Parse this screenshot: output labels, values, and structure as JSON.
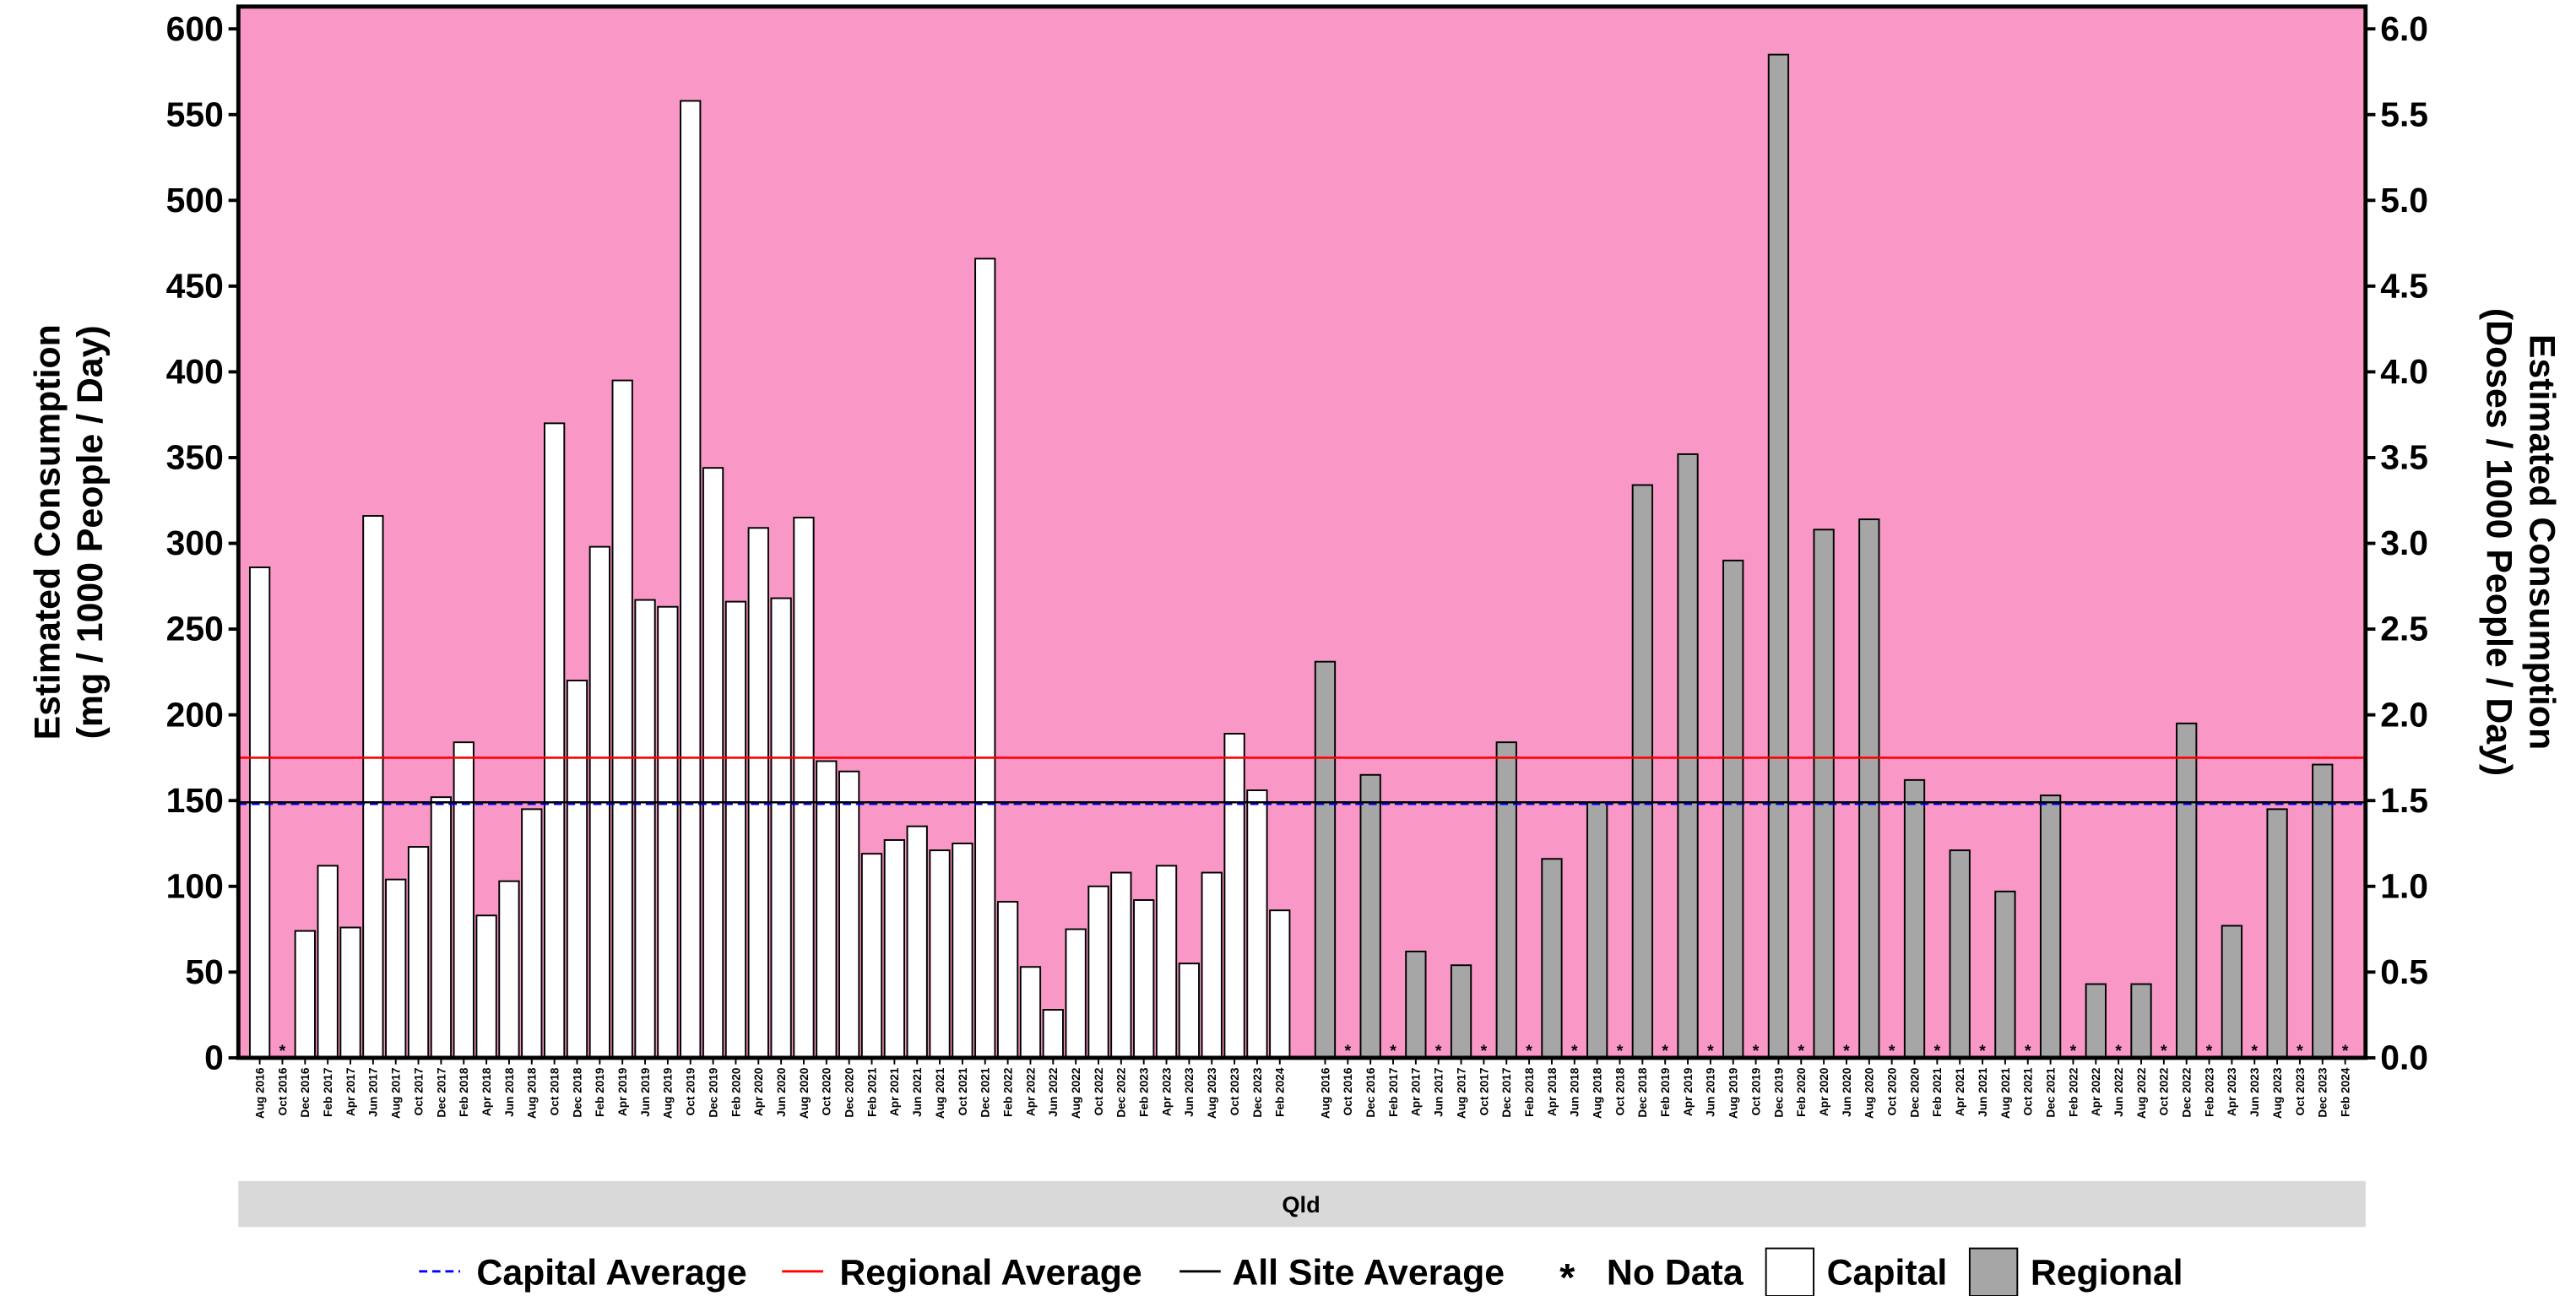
{
  "chart_data": {
    "type": "bar",
    "y_label": [
      "Estimated Consumption",
      "(mg / 1000 People / Day)"
    ],
    "y2_label": [
      "Estimated Consumption",
      "(Doses / 1000 People / Day)"
    ],
    "facet": "Qld",
    "categories": [
      "Aug 2016",
      "Oct 2016",
      "Dec 2016",
      "Feb 2017",
      "Apr 2017",
      "Jun 2017",
      "Aug 2017",
      "Oct 2017",
      "Dec 2017",
      "Feb 2018",
      "Apr 2018",
      "Jun 2018",
      "Aug 2018",
      "Oct 2018",
      "Dec 2018",
      "Feb 2019",
      "Apr 2019",
      "Jun 2019",
      "Aug 2019",
      "Oct 2019",
      "Dec 2019",
      "Feb 2020",
      "Apr 2020",
      "Jun 2020",
      "Aug 2020",
      "Oct 2020",
      "Dec 2020",
      "Feb 2021",
      "Apr 2021",
      "Jun 2021",
      "Aug 2021",
      "Oct 2021",
      "Dec 2021",
      "Feb 2022",
      "Apr 2022",
      "Jun 2022",
      "Aug 2022",
      "Oct 2022",
      "Dec 2022",
      "Feb 2023",
      "Apr 2023",
      "Jun 2023",
      "Aug 2023",
      "Oct 2023",
      "Dec 2023",
      "Feb 2024"
    ],
    "series": [
      {
        "name": "Capital",
        "color": "#ffffff",
        "values": [
          286,
          null,
          74,
          112,
          76,
          316,
          104,
          123,
          152,
          184,
          83,
          103,
          145,
          370,
          220,
          298,
          395,
          267,
          263,
          558,
          344,
          266,
          309,
          268,
          315,
          173,
          167,
          119,
          127,
          135,
          121,
          125,
          466,
          91,
          53,
          28,
          75,
          100,
          108,
          92,
          112,
          55,
          108,
          189,
          156,
          86
        ]
      },
      {
        "name": "Regional",
        "color": "#a6a6a6",
        "values": [
          231,
          null,
          165,
          null,
          62,
          null,
          54,
          null,
          184,
          null,
          116,
          null,
          149,
          null,
          334,
          null,
          352,
          null,
          290,
          null,
          585,
          null,
          308,
          null,
          314,
          null,
          162,
          null,
          121,
          null,
          97,
          null,
          153,
          null,
          43,
          null,
          43,
          null,
          195,
          null,
          77,
          null,
          145,
          null,
          171,
          null
        ]
      }
    ],
    "reference_lines": [
      {
        "name": "Capital Average",
        "color": "#0000ff",
        "dash": true,
        "value": 148
      },
      {
        "name": "Regional Average",
        "color": "#ff0000",
        "dash": false,
        "value": 175
      },
      {
        "name": "All Site Average",
        "color": "#000000",
        "dash": false,
        "value": 149
      }
    ],
    "no_data_marker": "*",
    "no_data_label": "No Data",
    "background": "#f998c6",
    "ylim": [
      0,
      613
    ],
    "yticks": [
      0,
      50,
      100,
      150,
      200,
      250,
      300,
      350,
      400,
      450,
      500,
      550,
      600
    ],
    "y2lim": [
      0,
      6.13
    ],
    "y2ticks": [
      {
        "value": 0,
        "label": "0.0"
      },
      {
        "value": 0.5,
        "label": "0.5"
      },
      {
        "value": 1,
        "label": "1.0"
      },
      {
        "value": 1.5,
        "label": "1.5"
      },
      {
        "value": 2,
        "label": "2.0"
      },
      {
        "value": 2.5,
        "label": "2.5"
      },
      {
        "value": 3,
        "label": "3.0"
      },
      {
        "value": 3.5,
        "label": "3.5"
      },
      {
        "value": 4,
        "label": "4.0"
      },
      {
        "value": 4.5,
        "label": "4.5"
      },
      {
        "value": 5,
        "label": "5.0"
      },
      {
        "value": 5.5,
        "label": "5.5"
      },
      {
        "value": 6,
        "label": "6.0"
      }
    ]
  }
}
